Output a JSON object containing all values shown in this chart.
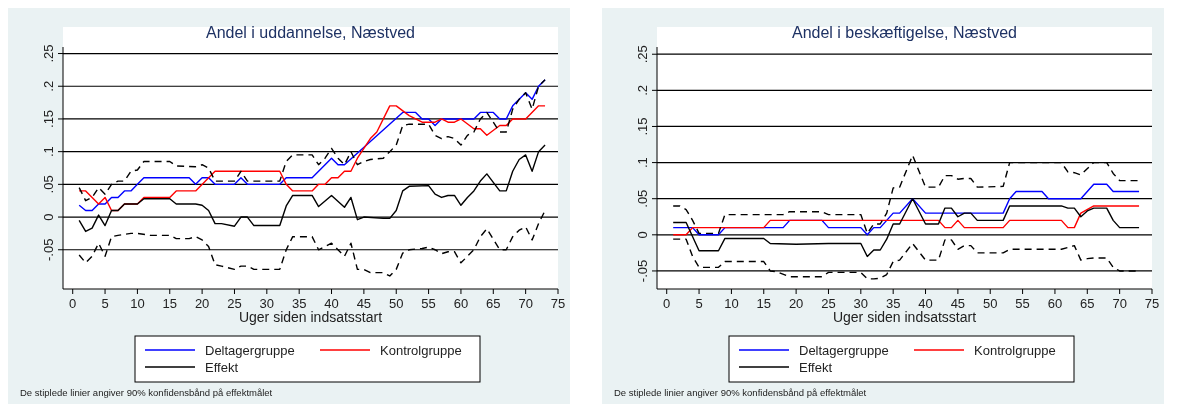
{
  "chart_data": [
    {
      "type": "line",
      "title": "Andel i uddannelse, Næstved",
      "xlabel": "Uger siden indsatsstart",
      "xlim": [
        -1.5,
        75
      ],
      "xticks": [
        0,
        5,
        10,
        15,
        20,
        25,
        30,
        35,
        40,
        45,
        50,
        55,
        60,
        65,
        70,
        75
      ],
      "ylim": [
        -0.11,
        0.26
      ],
      "yticks": [
        {
          "value": -0.05,
          "label": "-.05"
        },
        0,
        {
          "value": 0.05,
          "label": ".05"
        },
        {
          "value": 0.1,
          "label": ".1"
        },
        {
          "value": 0.15,
          "label": ".15"
        },
        {
          "value": 0.2,
          "label": ".2"
        },
        {
          "value": 0.25,
          "label": ".25"
        }
      ],
      "grid": "y",
      "legend": "bottom",
      "line_style": "solid",
      "annotations": [
        "De stiplede linier angiver 90% konfidensbånd på effektmålet"
      ],
      "series": [
        {
          "name": "Deltagergruppe",
          "color": "#0000ff",
          "x": [
            1,
            2,
            3,
            4,
            5,
            6,
            7,
            8,
            9,
            10,
            11,
            18,
            19,
            20,
            21,
            22,
            25,
            26,
            27,
            32,
            33,
            37,
            40,
            41,
            42,
            51,
            53,
            54,
            55,
            56,
            57,
            62,
            63,
            65,
            66,
            67,
            68,
            70,
            71,
            72,
            73
          ],
          "values": [
            0.018,
            0.01,
            0.01,
            0.02,
            0.02,
            0.03,
            0.03,
            0.04,
            0.04,
            0.05,
            0.06,
            0.06,
            0.05,
            0.06,
            0.06,
            0.05,
            0.05,
            0.06,
            0.05,
            0.05,
            0.06,
            0.06,
            0.09,
            0.08,
            0.08,
            0.16,
            0.16,
            0.15,
            0.15,
            0.14,
            0.15,
            0.15,
            0.16,
            0.16,
            0.15,
            0.15,
            0.17,
            0.19,
            0.18,
            0.2,
            0.21
          ]
        },
        {
          "name": "Kontrolgruppe",
          "color": "#ff0000",
          "x": [
            1,
            2,
            3,
            4,
            5,
            6,
            7,
            8,
            10,
            11,
            15,
            16,
            19,
            22,
            32,
            33,
            34,
            37,
            38,
            39,
            40,
            41,
            42,
            43,
            44,
            46,
            47,
            49,
            50,
            52,
            53,
            54,
            56,
            57,
            58,
            59,
            60,
            62,
            63,
            64,
            66,
            67,
            68,
            70,
            72,
            73
          ],
          "values": [
            0.04,
            0.04,
            0.03,
            0.02,
            0.03,
            0.01,
            0.01,
            0.02,
            0.02,
            0.03,
            0.03,
            0.04,
            0.04,
            0.07,
            0.07,
            0.05,
            0.04,
            0.04,
            0.05,
            0.05,
            0.06,
            0.06,
            0.07,
            0.07,
            0.09,
            0.12,
            0.13,
            0.17,
            0.17,
            0.155,
            0.15,
            0.145,
            0.145,
            0.15,
            0.145,
            0.145,
            0.15,
            0.135,
            0.135,
            0.125,
            0.14,
            0.14,
            0.15,
            0.15,
            0.17,
            0.17
          ]
        },
        {
          "name": "Effekt",
          "color": "#000000",
          "x": [
            1,
            2,
            3,
            4,
            5,
            6,
            7,
            8,
            10,
            11,
            15,
            16,
            19,
            20,
            21,
            22,
            23,
            25,
            26,
            27,
            28,
            32,
            33,
            34,
            37,
            38,
            40,
            42,
            43,
            44,
            45,
            48,
            49,
            50,
            51,
            52,
            55,
            56,
            57,
            58,
            59,
            60,
            61,
            62,
            63,
            64,
            66,
            67,
            68,
            69,
            70,
            71,
            72,
            73
          ],
          "values": [
            -0.005,
            -0.022,
            -0.017,
            0.003,
            -0.013,
            0.01,
            0.01,
            0.02,
            0.02,
            0.028,
            0.028,
            0.02,
            0.02,
            0.018,
            0.01,
            -0.01,
            -0.01,
            -0.014,
            0,
            0,
            -0.013,
            -0.013,
            0.017,
            0.033,
            0.033,
            0.016,
            0.033,
            0.015,
            0.03,
            -0.004,
            0,
            -0.002,
            -0.002,
            0.01,
            0.04,
            0.047,
            0.048,
            0.035,
            0.03,
            0.033,
            0.033,
            0.018,
            0.03,
            0.04,
            0.055,
            0.066,
            0.04,
            0.04,
            0.07,
            0.088,
            0.095,
            0.07,
            0.1,
            0.11
          ]
        },
        {
          "color": "#000000",
          "line_style": "dashed",
          "x": [
            1,
            2,
            3,
            4,
            5,
            6,
            7,
            8,
            9,
            10,
            11,
            15,
            16,
            19,
            20,
            21,
            22,
            25,
            26,
            27,
            32,
            33,
            34,
            37,
            38,
            39,
            40,
            41,
            42,
            43,
            44,
            45,
            46,
            48,
            49,
            50,
            51,
            52,
            55,
            56,
            57,
            58,
            59,
            60,
            61,
            62,
            63,
            64,
            65,
            66,
            67,
            68,
            69,
            70,
            71,
            72,
            73
          ],
          "values": [
            0.045,
            0.025,
            0.03,
            0.045,
            0.035,
            0.05,
            0.055,
            0.055,
            0.07,
            0.072,
            0.085,
            0.085,
            0.078,
            0.077,
            0.08,
            0.075,
            0.055,
            0.055,
            0.07,
            0.055,
            0.055,
            0.085,
            0.095,
            0.095,
            0.08,
            0.09,
            0.105,
            0.09,
            0.08,
            0.1,
            0.08,
            0.085,
            0.088,
            0.09,
            0.1,
            0.11,
            0.14,
            0.142,
            0.142,
            0.125,
            0.12,
            0.123,
            0.12,
            0.11,
            0.125,
            0.13,
            0.15,
            0.16,
            0.145,
            0.13,
            0.13,
            0.165,
            0.18,
            0.19,
            0.165,
            0.2,
            0.21
          ]
        },
        {
          "color": "#000000",
          "line_style": "dashed",
          "x": [
            1,
            2,
            3,
            4,
            5,
            6,
            7,
            9,
            10,
            12,
            15,
            16,
            18,
            19,
            20,
            21,
            22,
            23,
            25,
            26,
            27,
            28,
            32,
            33,
            34,
            37,
            38,
            40,
            42,
            43,
            44,
            45,
            46,
            48,
            49,
            50,
            51,
            52,
            54,
            55,
            56,
            57,
            58,
            59,
            60,
            61,
            62,
            63,
            64,
            66,
            67,
            68,
            69,
            70,
            71,
            72,
            73
          ],
          "values": [
            -0.058,
            -0.07,
            -0.06,
            -0.04,
            -0.06,
            -0.03,
            -0.028,
            -0.025,
            -0.025,
            -0.028,
            -0.028,
            -0.033,
            -0.033,
            -0.03,
            -0.035,
            -0.045,
            -0.073,
            -0.075,
            -0.08,
            -0.075,
            -0.075,
            -0.08,
            -0.08,
            -0.05,
            -0.03,
            -0.03,
            -0.05,
            -0.04,
            -0.06,
            -0.04,
            -0.08,
            -0.08,
            -0.085,
            -0.085,
            -0.09,
            -0.08,
            -0.055,
            -0.05,
            -0.048,
            -0.046,
            -0.05,
            -0.056,
            -0.053,
            -0.053,
            -0.07,
            -0.06,
            -0.05,
            -0.03,
            -0.018,
            -0.05,
            -0.05,
            -0.03,
            -0.02,
            -0.015,
            -0.035,
            -0.01,
            0.01
          ]
        }
      ]
    },
    {
      "type": "line",
      "title": "Andel i beskæftigelse, Næstved",
      "xlabel": "Uger siden indsatsstart",
      "xlim": [
        -1.5,
        75
      ],
      "xticks": [
        0,
        5,
        10,
        15,
        20,
        25,
        30,
        35,
        40,
        45,
        50,
        55,
        60,
        65,
        70,
        75
      ],
      "ylim": [
        -0.075,
        0.26
      ],
      "yticks": [
        {
          "value": -0.05,
          "label": "-.05"
        },
        0,
        {
          "value": 0.05,
          "label": ".05"
        },
        {
          "value": 0.1,
          "label": ".1"
        },
        {
          "value": 0.15,
          "label": ".15"
        },
        {
          "value": 0.2,
          "label": ".2"
        },
        {
          "value": 0.25,
          "label": ".25"
        }
      ],
      "grid": "y",
      "legend": "bottom",
      "line_style": "solid",
      "annotations": [
        "De stiplede linier angiver 90% konfidensbånd på effektmålet"
      ],
      "series": [
        {
          "name": "Deltagergruppe",
          "color": "#0000ff",
          "x": [
            1,
            4,
            5,
            8,
            9,
            18,
            19,
            24,
            25,
            30,
            31,
            32,
            33,
            35,
            36,
            38,
            40,
            52,
            53,
            54,
            58,
            59,
            64,
            66,
            68,
            69,
            73
          ],
          "values": [
            0.01,
            0.01,
            0,
            0,
            0.01,
            0.01,
            0.02,
            0.02,
            0.01,
            0.01,
            0,
            0.01,
            0.01,
            0.03,
            0.03,
            0.05,
            0.03,
            0.03,
            0.05,
            0.06,
            0.06,
            0.05,
            0.05,
            0.07,
            0.07,
            0.06,
            0.06
          ]
        },
        {
          "name": "Kontrolgruppe",
          "color": "#ff0000",
          "x": [
            1,
            3,
            4,
            15,
            16,
            42,
            43,
            44,
            45,
            46,
            52,
            53,
            61,
            62,
            63,
            64,
            66,
            73
          ],
          "values": [
            0,
            0,
            0.01,
            0.01,
            0.02,
            0.02,
            0.01,
            0.01,
            0.02,
            0.01,
            0.01,
            0.02,
            0.02,
            0.01,
            0.01,
            0.03,
            0.04,
            0.04
          ]
        },
        {
          "name": "Effekt",
          "color": "#000000",
          "x": [
            1,
            3,
            5,
            8,
            9,
            15,
            16,
            20,
            25,
            30,
            31,
            32,
            33,
            34,
            35,
            36,
            38,
            40,
            42,
            43,
            44,
            45,
            46,
            47,
            48,
            52,
            53,
            61,
            62,
            63,
            64,
            65,
            66,
            68,
            69,
            70,
            73
          ],
          "values": [
            0.017,
            0.017,
            -0.022,
            -0.022,
            -0.005,
            -0.005,
            -0.012,
            -0.013,
            -0.012,
            -0.012,
            -0.03,
            -0.021,
            -0.021,
            -0.006,
            0.015,
            0.015,
            0.05,
            0.015,
            0.015,
            0.037,
            0.037,
            0.025,
            0.03,
            0.03,
            0.02,
            0.02,
            0.04,
            0.04,
            0.037,
            0.037,
            0.025,
            0.033,
            0.037,
            0.037,
            0.02,
            0.01,
            0.01
          ]
        },
        {
          "color": "#000000",
          "line_style": "dashed",
          "x": [
            1,
            2,
            3,
            4,
            5,
            8,
            9,
            15,
            18,
            19,
            24,
            25,
            30,
            31,
            32,
            33,
            34,
            35,
            36,
            38,
            40,
            42,
            43,
            44,
            45,
            46,
            47,
            48,
            52,
            53,
            61,
            62,
            63,
            64,
            66,
            68,
            69,
            70,
            73
          ],
          "values": [
            0.04,
            0.04,
            0.035,
            0.02,
            0.002,
            0.002,
            0.028,
            0.028,
            0.028,
            0.032,
            0.032,
            0.028,
            0.028,
            0.002,
            0.015,
            0.015,
            0.03,
            0.065,
            0.066,
            0.11,
            0.066,
            0.066,
            0.082,
            0.082,
            0.077,
            0.078,
            0.078,
            0.066,
            0.067,
            0.1,
            0.1,
            0.087,
            0.086,
            0.083,
            0.1,
            0.1,
            0.085,
            0.075,
            0.075
          ]
        },
        {
          "color": "#000000",
          "line_style": "dashed",
          "x": [
            1,
            3,
            4,
            5,
            8,
            9,
            15,
            16,
            17,
            19,
            24,
            25,
            30,
            31,
            32,
            33,
            34,
            35,
            36,
            38,
            40,
            42,
            43,
            44,
            45,
            46,
            47,
            48,
            52,
            53,
            61,
            63,
            64,
            65,
            66,
            68,
            69,
            70,
            73
          ],
          "values": [
            -0.006,
            -0.006,
            -0.03,
            -0.045,
            -0.045,
            -0.037,
            -0.037,
            -0.05,
            -0.051,
            -0.058,
            -0.058,
            -0.052,
            -0.052,
            -0.061,
            -0.061,
            -0.06,
            -0.055,
            -0.037,
            -0.035,
            -0.012,
            -0.035,
            -0.035,
            -0.007,
            -0.007,
            -0.02,
            -0.015,
            -0.015,
            -0.025,
            -0.025,
            -0.02,
            -0.02,
            -0.015,
            -0.035,
            -0.033,
            -0.032,
            -0.032,
            -0.045,
            -0.05,
            -0.05
          ]
        }
      ]
    }
  ]
}
